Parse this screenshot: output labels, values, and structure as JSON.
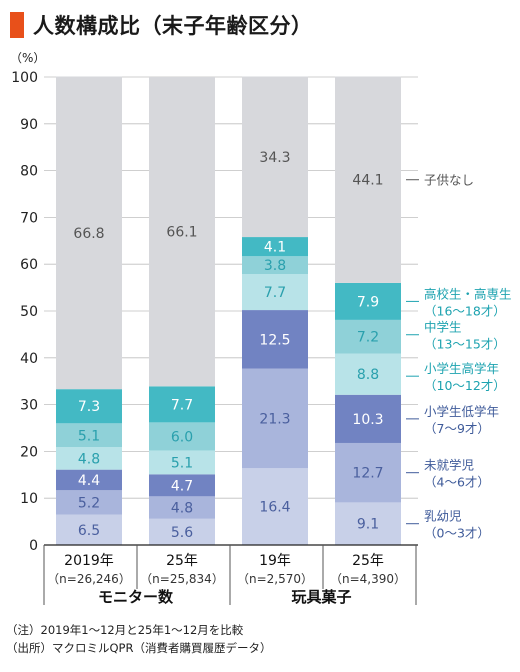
{
  "title": "人数構成比（末子年齢区分）",
  "chart_data": {
    "type": "bar",
    "stacked": true,
    "unit_label": "（%）",
    "ylim": [
      0,
      100
    ],
    "yticks": [
      0,
      10,
      20,
      30,
      40,
      50,
      60,
      70,
      80,
      90,
      100
    ],
    "categories": [
      {
        "year": "2019年",
        "n": "（n=26,246）"
      },
      {
        "year": "25年",
        "n": "（n=25,834）"
      },
      {
        "year": "19年",
        "n": "（n=2,570）"
      },
      {
        "year": "25年",
        "n": "（n=4,390）"
      }
    ],
    "groups": [
      {
        "label": "モニター数",
        "categories": [
          0,
          1
        ]
      },
      {
        "label": "玩具菓子",
        "categories": [
          2,
          3
        ]
      }
    ],
    "series": [
      {
        "name": "乳幼児",
        "range": "（0〜3才）",
        "color": "#c8d0e8",
        "label_color": "#3f5b9a",
        "values": [
          6.5,
          5.6,
          16.4,
          9.1
        ]
      },
      {
        "name": "未就学児",
        "range": "（4〜6才）",
        "color": "#a9b5dc",
        "label_color": "#3f5b9a",
        "values": [
          5.2,
          4.8,
          21.3,
          12.7
        ]
      },
      {
        "name": "小学生低学年",
        "range": "（7〜9才）",
        "color": "#7183c2",
        "label_color": "#3f5b9a",
        "values": [
          4.4,
          4.7,
          12.5,
          10.3
        ]
      },
      {
        "name": "小学生高学年",
        "range": "（10〜12才）",
        "color": "#b8e3e8",
        "label_color": "#1ea3b0",
        "values": [
          4.8,
          5.1,
          7.7,
          8.8
        ]
      },
      {
        "name": "中学生",
        "range": "（13〜15才）",
        "color": "#8fd1d8",
        "label_color": "#1ea3b0",
        "values": [
          5.1,
          6.0,
          3.8,
          7.2
        ]
      },
      {
        "name": "高校生・高専生",
        "range": "（16〜18才）",
        "color": "#43b9c4",
        "label_color": "#1ea3b0",
        "values": [
          7.3,
          7.7,
          4.1,
          7.9
        ]
      },
      {
        "name": "子供なし",
        "range": "",
        "color": "#d7d8dc",
        "label_color": "#555555",
        "values": [
          66.8,
          66.1,
          34.3,
          44.1
        ]
      }
    ]
  },
  "notes": [
    "（注）2019年1〜12月と25年1〜12月を比較",
    "（出所）マクロミルQPR（消費者購買履歴データ）"
  ]
}
